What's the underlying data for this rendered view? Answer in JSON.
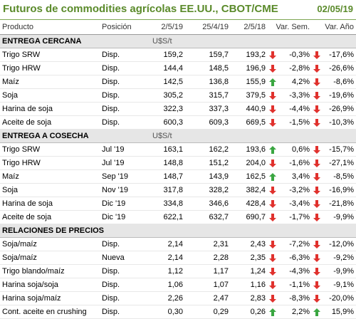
{
  "title": "Futuros de commodities agrícolas EE.UU., CBOT/CME",
  "date": "02/05/19",
  "columns": [
    "Producto",
    "Posición",
    "2/5/19",
    "25/4/19",
    "2/5/18",
    "Var. Sem.",
    "Var. Año"
  ],
  "colors": {
    "title": "#5a8a2a",
    "up": "#3aa641",
    "down": "#e0312d",
    "section_bg": "#e6e6e6"
  },
  "sections": [
    {
      "label": "ENTREGA CERCANA",
      "unit": "U$S/t",
      "rows": [
        {
          "product": "Trigo SRW",
          "position": "Disp.",
          "c1": "159,2",
          "c2": "159,7",
          "c3": "193,2",
          "a1": "down",
          "wk": "-0,3%",
          "a2": "down",
          "yr": "-17,6%"
        },
        {
          "product": "Trigo HRW",
          "position": "Disp.",
          "c1": "144,4",
          "c2": "148,5",
          "c3": "196,9",
          "a1": "down",
          "wk": "-2,8%",
          "a2": "down",
          "yr": "-26,6%"
        },
        {
          "product": "Maíz",
          "position": "Disp.",
          "c1": "142,5",
          "c2": "136,8",
          "c3": "155,9",
          "a1": "up",
          "wk": "4,2%",
          "a2": "down",
          "yr": "-8,6%"
        },
        {
          "product": "Soja",
          "position": "Disp.",
          "c1": "305,2",
          "c2": "315,7",
          "c3": "379,5",
          "a1": "down",
          "wk": "-3,3%",
          "a2": "down",
          "yr": "-19,6%"
        },
        {
          "product": "Harina de soja",
          "position": "Disp.",
          "c1": "322,3",
          "c2": "337,3",
          "c3": "440,9",
          "a1": "down",
          "wk": "-4,4%",
          "a2": "down",
          "yr": "-26,9%"
        },
        {
          "product": "Aceite de soja",
          "position": "Disp.",
          "c1": "600,3",
          "c2": "609,3",
          "c3": "669,5",
          "a1": "down",
          "wk": "-1,5%",
          "a2": "down",
          "yr": "-10,3%"
        }
      ]
    },
    {
      "label": "ENTREGA A COSECHA",
      "unit": "U$S/t",
      "rows": [
        {
          "product": "Trigo SRW",
          "position": "Jul '19",
          "c1": "163,1",
          "c2": "162,2",
          "c3": "193,6",
          "a1": "up",
          "wk": "0,6%",
          "a2": "down",
          "yr": "-15,7%"
        },
        {
          "product": "Trigo HRW",
          "position": "Jul '19",
          "c1": "148,8",
          "c2": "151,2",
          "c3": "204,0",
          "a1": "down",
          "wk": "-1,6%",
          "a2": "down",
          "yr": "-27,1%"
        },
        {
          "product": "Maíz",
          "position": "Sep '19",
          "c1": "148,7",
          "c2": "143,9",
          "c3": "162,5",
          "a1": "up",
          "wk": "3,4%",
          "a2": "down",
          "yr": "-8,5%"
        },
        {
          "product": "Soja",
          "position": "Nov '19",
          "c1": "317,8",
          "c2": "328,2",
          "c3": "382,4",
          "a1": "down",
          "wk": "-3,2%",
          "a2": "down",
          "yr": "-16,9%"
        },
        {
          "product": "Harina de soja",
          "position": "Dic '19",
          "c1": "334,8",
          "c2": "346,6",
          "c3": "428,4",
          "a1": "down",
          "wk": "-3,4%",
          "a2": "down",
          "yr": "-21,8%"
        },
        {
          "product": "Aceite de soja",
          "position": "Dic '19",
          "c1": "622,1",
          "c2": "632,7",
          "c3": "690,7",
          "a1": "down",
          "wk": "-1,7%",
          "a2": "down",
          "yr": "-9,9%"
        }
      ]
    },
    {
      "label": "RELACIONES DE PRECIOS",
      "unit": "",
      "rows": [
        {
          "product": "Soja/maíz",
          "position": "Disp.",
          "c1": "2,14",
          "c2": "2,31",
          "c3": "2,43",
          "a1": "down",
          "wk": "-7,2%",
          "a2": "down",
          "yr": "-12,0%"
        },
        {
          "product": "Soja/maíz",
          "position": "Nueva",
          "c1": "2,14",
          "c2": "2,28",
          "c3": "2,35",
          "a1": "down",
          "wk": "-6,3%",
          "a2": "down",
          "yr": "-9,2%"
        },
        {
          "product": "Trigo blando/maíz",
          "position": "Disp.",
          "c1": "1,12",
          "c2": "1,17",
          "c3": "1,24",
          "a1": "down",
          "wk": "-4,3%",
          "a2": "down",
          "yr": "-9,9%"
        },
        {
          "product": "Harina soja/soja",
          "position": "Disp.",
          "c1": "1,06",
          "c2": "1,07",
          "c3": "1,16",
          "a1": "down",
          "wk": "-1,1%",
          "a2": "down",
          "yr": "-9,1%"
        },
        {
          "product": "Harina soja/maíz",
          "position": "Disp.",
          "c1": "2,26",
          "c2": "2,47",
          "c3": "2,83",
          "a1": "down",
          "wk": "-8,3%",
          "a2": "down",
          "yr": "-20,0%"
        },
        {
          "product": "Cont. aceite en crushing",
          "position": "Disp.",
          "c1": "0,30",
          "c2": "0,29",
          "c3": "0,26",
          "a1": "up",
          "wk": "2,2%",
          "a2": "up",
          "yr": "15,9%"
        }
      ]
    }
  ]
}
